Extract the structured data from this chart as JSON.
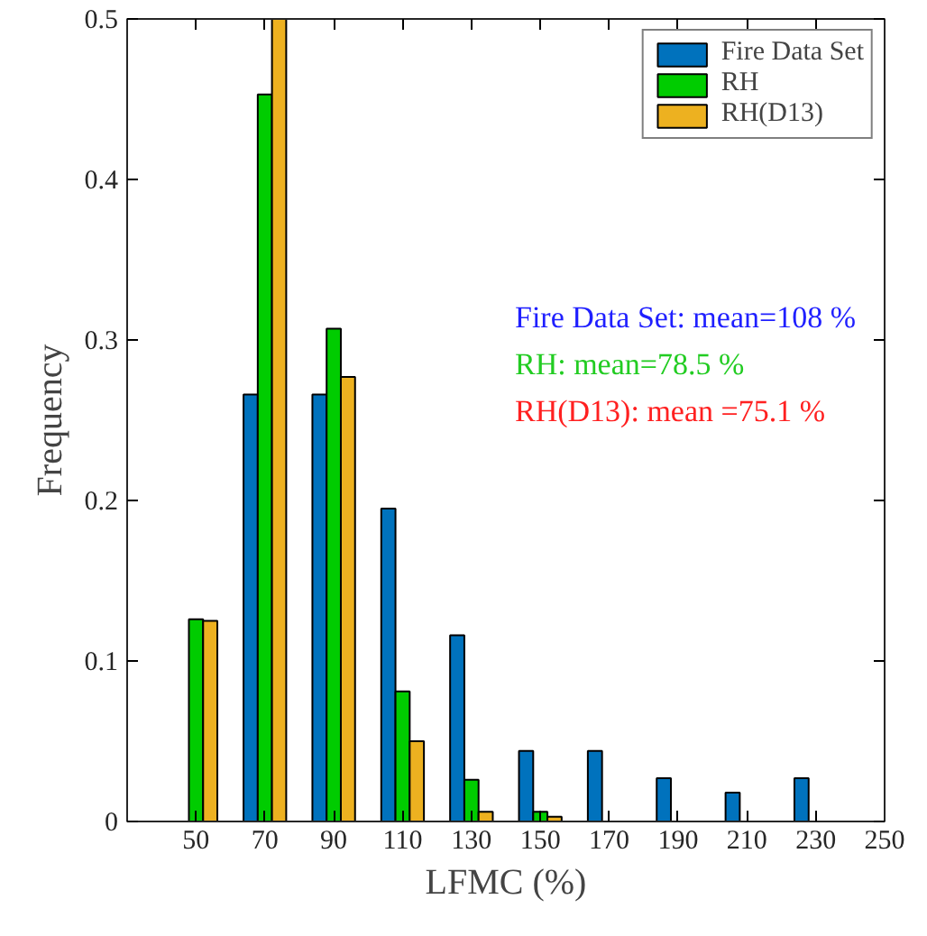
{
  "chart_data": {
    "type": "bar",
    "xlabel": "LFMC (%)",
    "ylabel": "Frequency",
    "x": [
      50,
      70,
      90,
      110,
      130,
      150,
      170,
      190,
      210,
      230
    ],
    "series": [
      {
        "name": "Fire Data Set",
        "color": "#0072bd",
        "values": [
          null,
          0.266,
          0.266,
          0.195,
          0.116,
          0.044,
          0.044,
          0.027,
          0.018,
          0.027
        ]
      },
      {
        "name": "RH",
        "color": "#00cc00",
        "values": [
          0.126,
          0.453,
          0.307,
          0.081,
          0.026,
          0.006,
          null,
          null,
          null,
          null
        ]
      },
      {
        "name": "RH(D13)",
        "color": "#edb120",
        "values": [
          0.125,
          0.5,
          0.277,
          0.05,
          0.006,
          0.003,
          null,
          null,
          null,
          null
        ]
      }
    ],
    "xlim": [
      30,
      250
    ],
    "xticks": [
      50,
      70,
      90,
      110,
      130,
      150,
      170,
      190,
      210,
      230,
      250
    ],
    "ylim": [
      0,
      0.5
    ],
    "yticks": [
      0,
      0.1,
      0.2,
      0.3,
      0.4,
      0.5
    ],
    "annotations": [
      "Fire Data Set: mean=108 %",
      "RH: mean=78.5 %",
      "RH(D13): mean =75.1 %"
    ],
    "legend": "top right",
    "grid": false
  }
}
